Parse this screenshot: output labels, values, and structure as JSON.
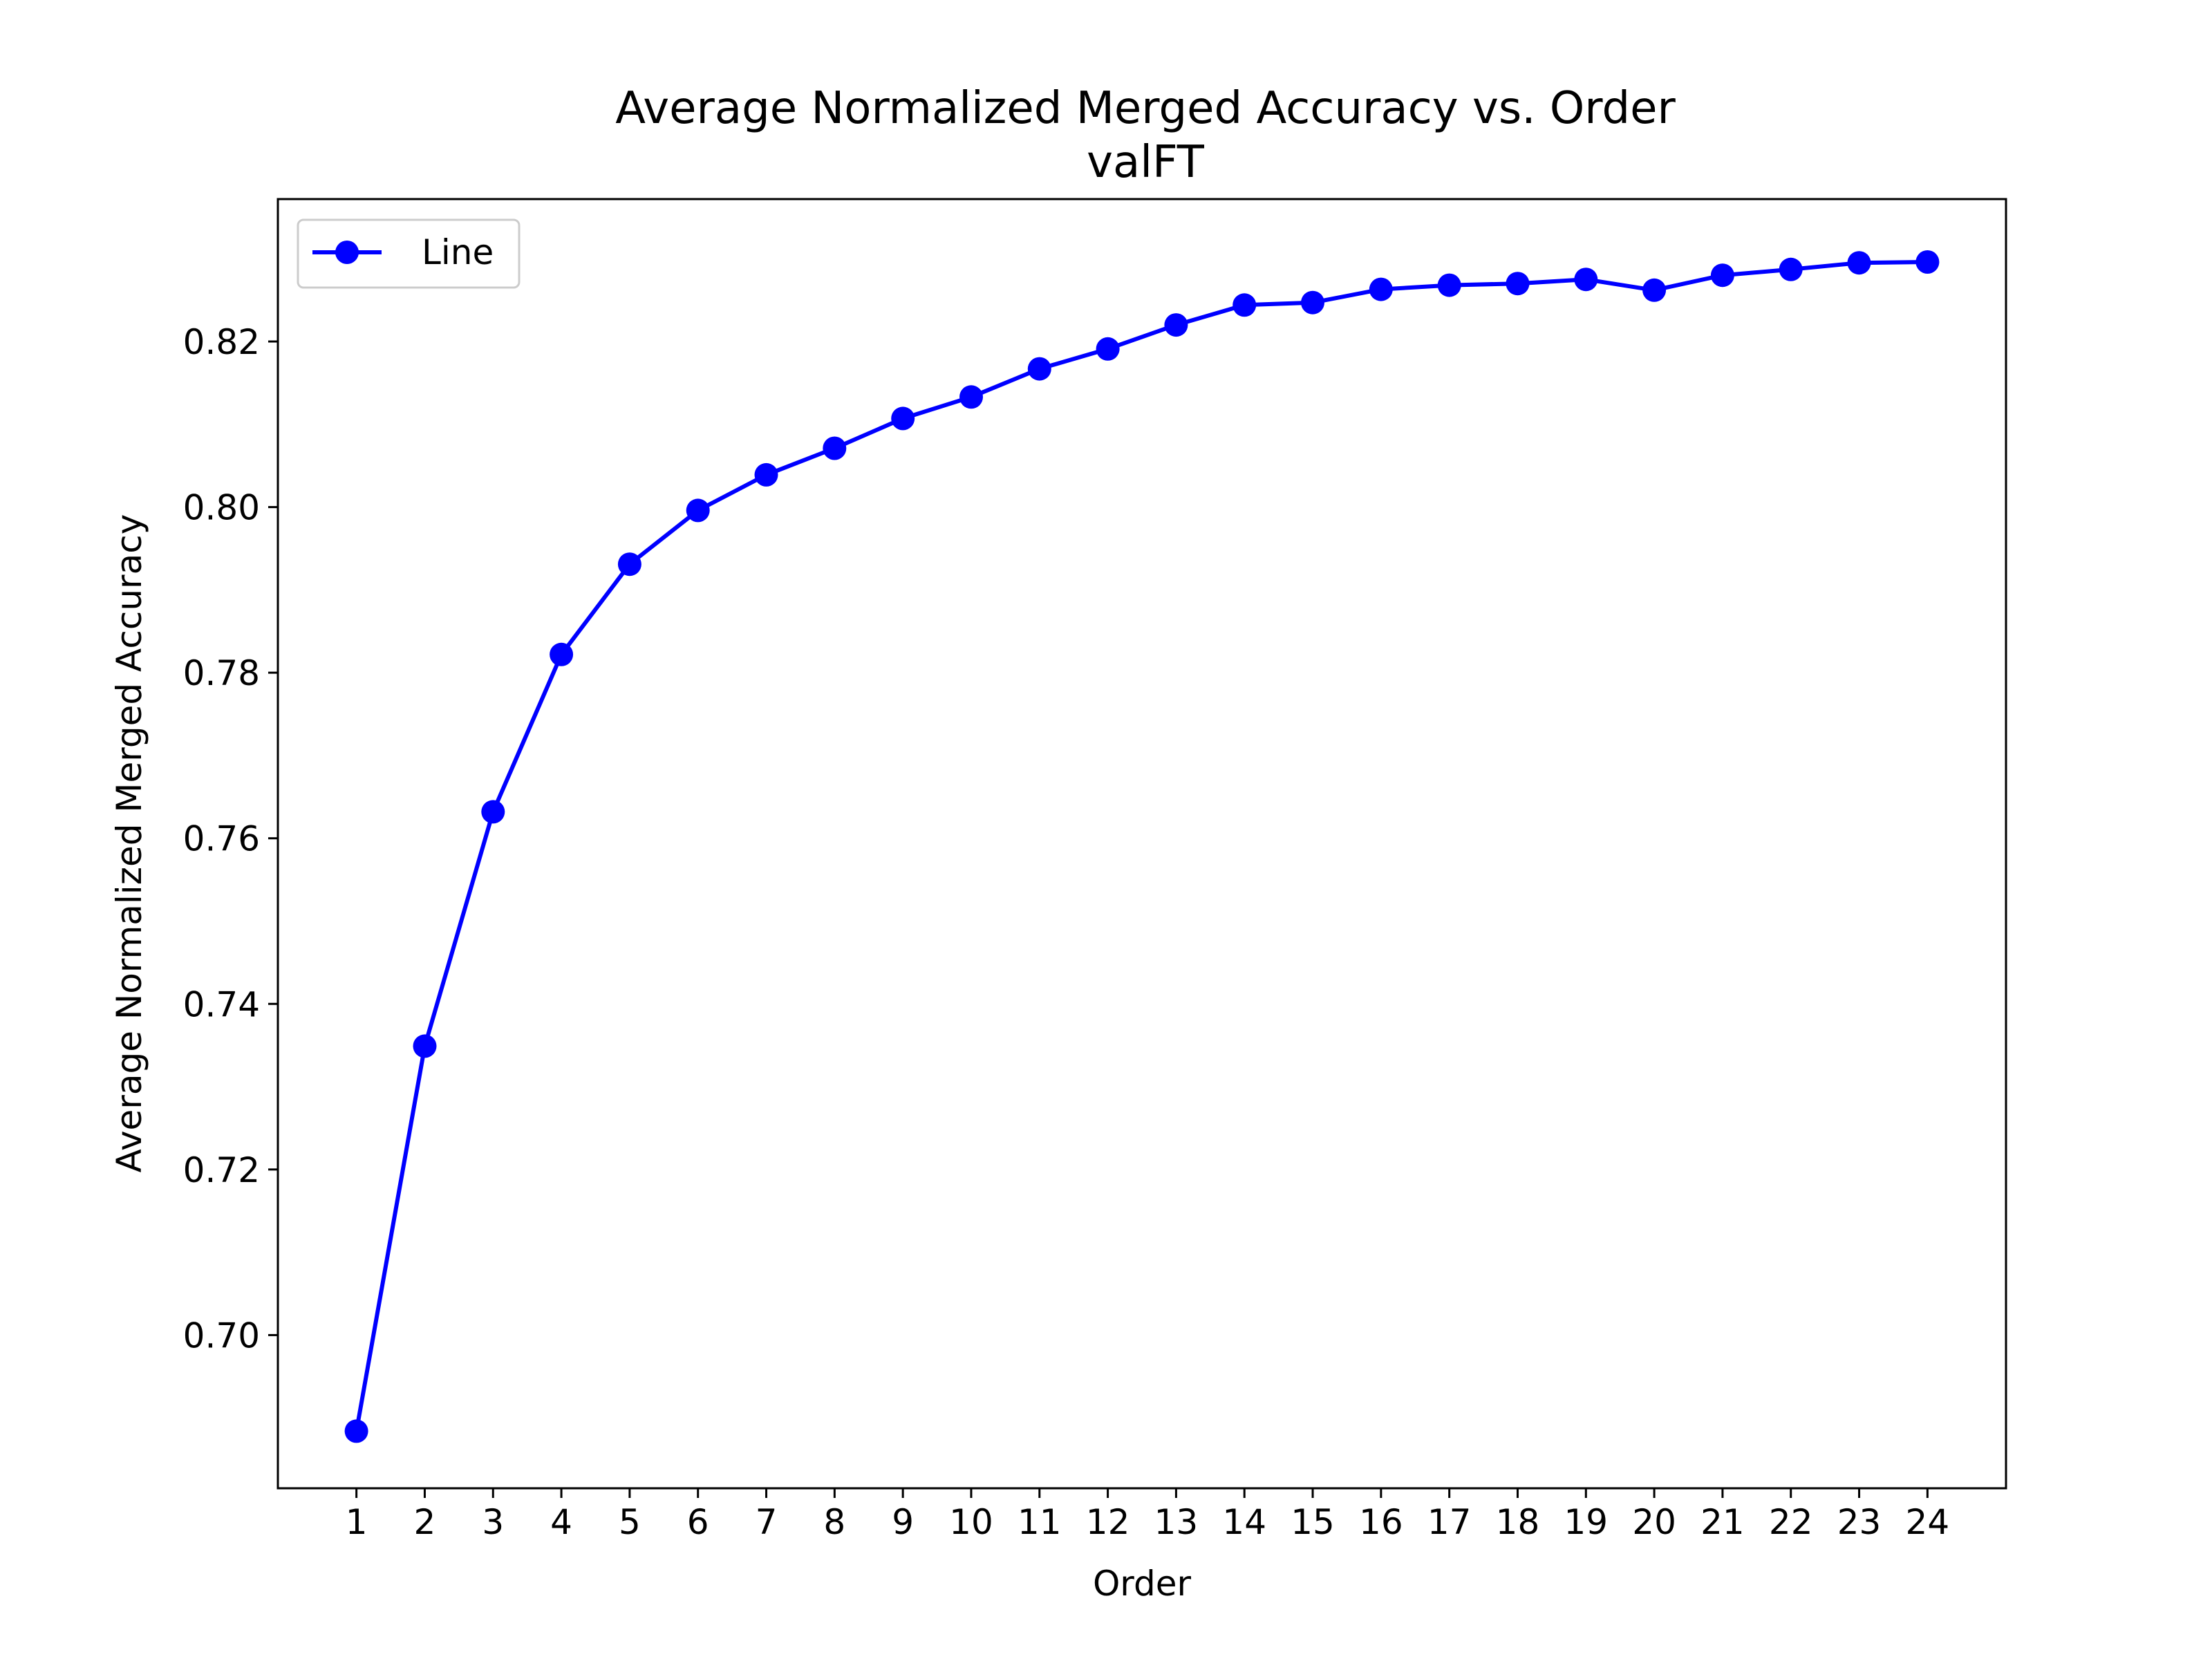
{
  "chart_data": {
    "type": "line",
    "title": "Average Normalized Merged Accuracy vs. Order",
    "subtitle": "valFT",
    "xlabel": "Order",
    "ylabel": "Average Normalized Merged Accuracy",
    "x": [
      1,
      2,
      3,
      4,
      5,
      6,
      7,
      8,
      9,
      10,
      11,
      12,
      13,
      14,
      15,
      16,
      17,
      18,
      19,
      20,
      21,
      22,
      23,
      24
    ],
    "x_tick_labels": [
      "1",
      "2",
      "3",
      "4",
      "5",
      "6",
      "7",
      "8",
      "9",
      "10",
      "11",
      "12",
      "13",
      "14",
      "15",
      "16",
      "17",
      "18",
      "19",
      "20",
      "21",
      "22",
      "23",
      "24"
    ],
    "y_ticks": [
      0.7,
      0.72,
      0.74,
      0.76,
      0.78,
      0.8,
      0.82
    ],
    "y_tick_labels": [
      "0.70",
      "0.72",
      "0.74",
      "0.76",
      "0.78",
      "0.80",
      "0.82"
    ],
    "xlim": [
      -0.15,
      25.15
    ],
    "ylim": [
      0.6815,
      0.8372
    ],
    "grid": false,
    "legend_position": "top-left",
    "series": [
      {
        "name": "Line",
        "color": "#0000ff",
        "marker": "circle",
        "values": [
          0.6884,
          0.7349,
          0.7632,
          0.7822,
          0.7931,
          0.7996,
          0.8039,
          0.8071,
          0.8107,
          0.8133,
          0.8167,
          0.8191,
          0.822,
          0.8244,
          0.8247,
          0.8263,
          0.8268,
          0.827,
          0.8275,
          0.8262,
          0.828,
          0.8287,
          0.8295,
          0.8296
        ]
      }
    ]
  }
}
